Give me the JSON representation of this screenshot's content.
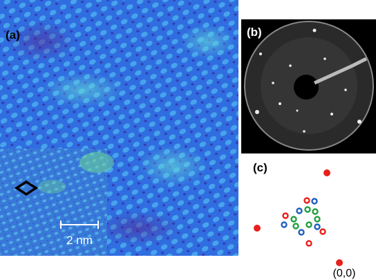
{
  "panels": {
    "a": {
      "label": "(a)",
      "inset": {
        "scale_bar": "2 nm"
      }
    },
    "b": {
      "label": "(b)"
    },
    "c": {
      "label": "(c)",
      "origin": "(0,0)"
    }
  }
}
